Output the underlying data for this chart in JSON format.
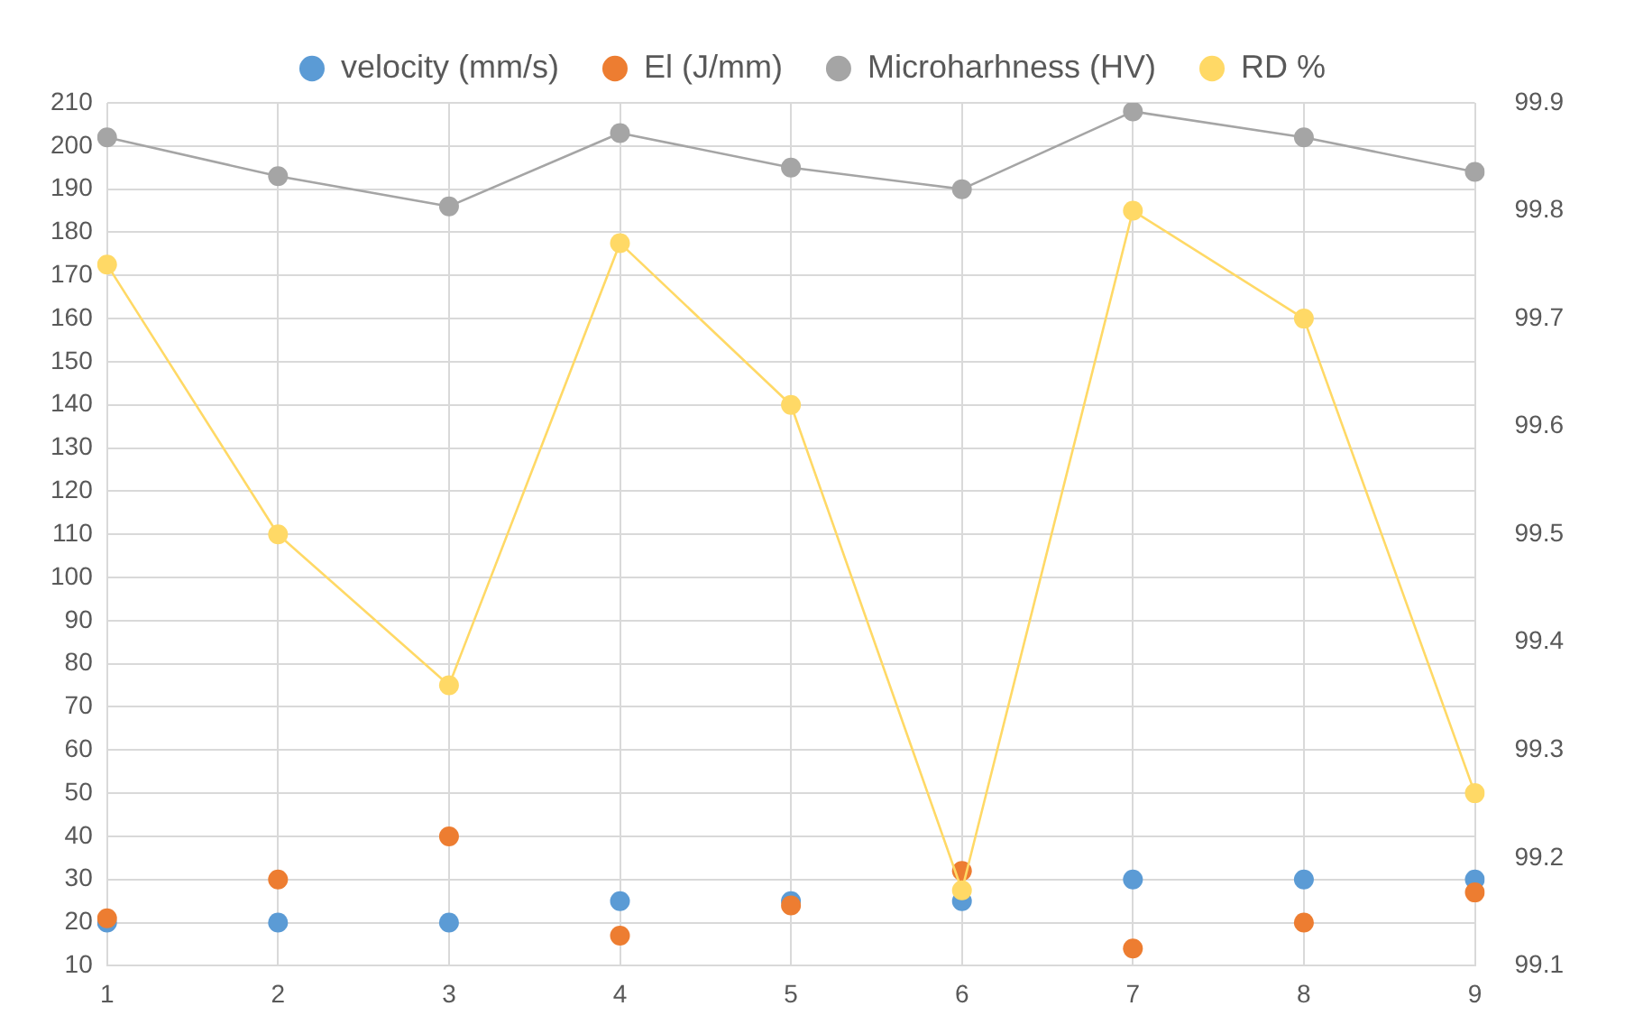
{
  "chart_data": {
    "type": "line",
    "categories": [
      "1",
      "2",
      "3",
      "4",
      "5",
      "6",
      "7",
      "8",
      "9"
    ],
    "series": [
      {
        "name": "velocity (mm/s)",
        "type": "scatter",
        "color": "#5b9bd5",
        "values": [
          20,
          20,
          20,
          25,
          25,
          25,
          30,
          30,
          30
        ]
      },
      {
        "name": "El (J/mm)",
        "type": "scatter",
        "color": "#ed7d31",
        "values": [
          21,
          30,
          40,
          17,
          24,
          32,
          14,
          20,
          27
        ]
      },
      {
        "name": "Microharhness (HV)",
        "type": "line",
        "color": "#a5a5a5",
        "values": [
          202,
          193,
          186,
          203,
          195,
          190,
          208,
          202,
          194
        ]
      },
      {
        "name": "RD %",
        "type": "line",
        "axis": "y2",
        "color": "#ffd966",
        "values": [
          99.75,
          99.5,
          99.36,
          99.77,
          99.62,
          99.17,
          99.8,
          99.7,
          99.26
        ]
      }
    ],
    "ylim": [
      10,
      210
    ],
    "yticks": [
      10,
      20,
      30,
      40,
      50,
      60,
      70,
      80,
      90,
      100,
      110,
      120,
      130,
      140,
      150,
      160,
      170,
      180,
      190,
      200,
      210
    ],
    "y2lim": [
      99.1,
      99.9
    ],
    "y2ticks": [
      {
        "value": 99.1,
        "label": "99.1"
      },
      {
        "value": 99.2,
        "label": "99.2"
      },
      {
        "value": 99.3,
        "label": "99.3"
      },
      {
        "value": 99.4,
        "label": "99.4"
      },
      {
        "value": 99.5,
        "label": "99.5"
      },
      {
        "value": 99.6,
        "label": "99.6"
      },
      {
        "value": 99.7,
        "label": "99.7"
      },
      {
        "value": 99.8,
        "label": "99.8"
      },
      {
        "value": 99.9,
        "label": "99.9"
      }
    ],
    "grid": true,
    "legend": "top",
    "marker": "circle"
  }
}
